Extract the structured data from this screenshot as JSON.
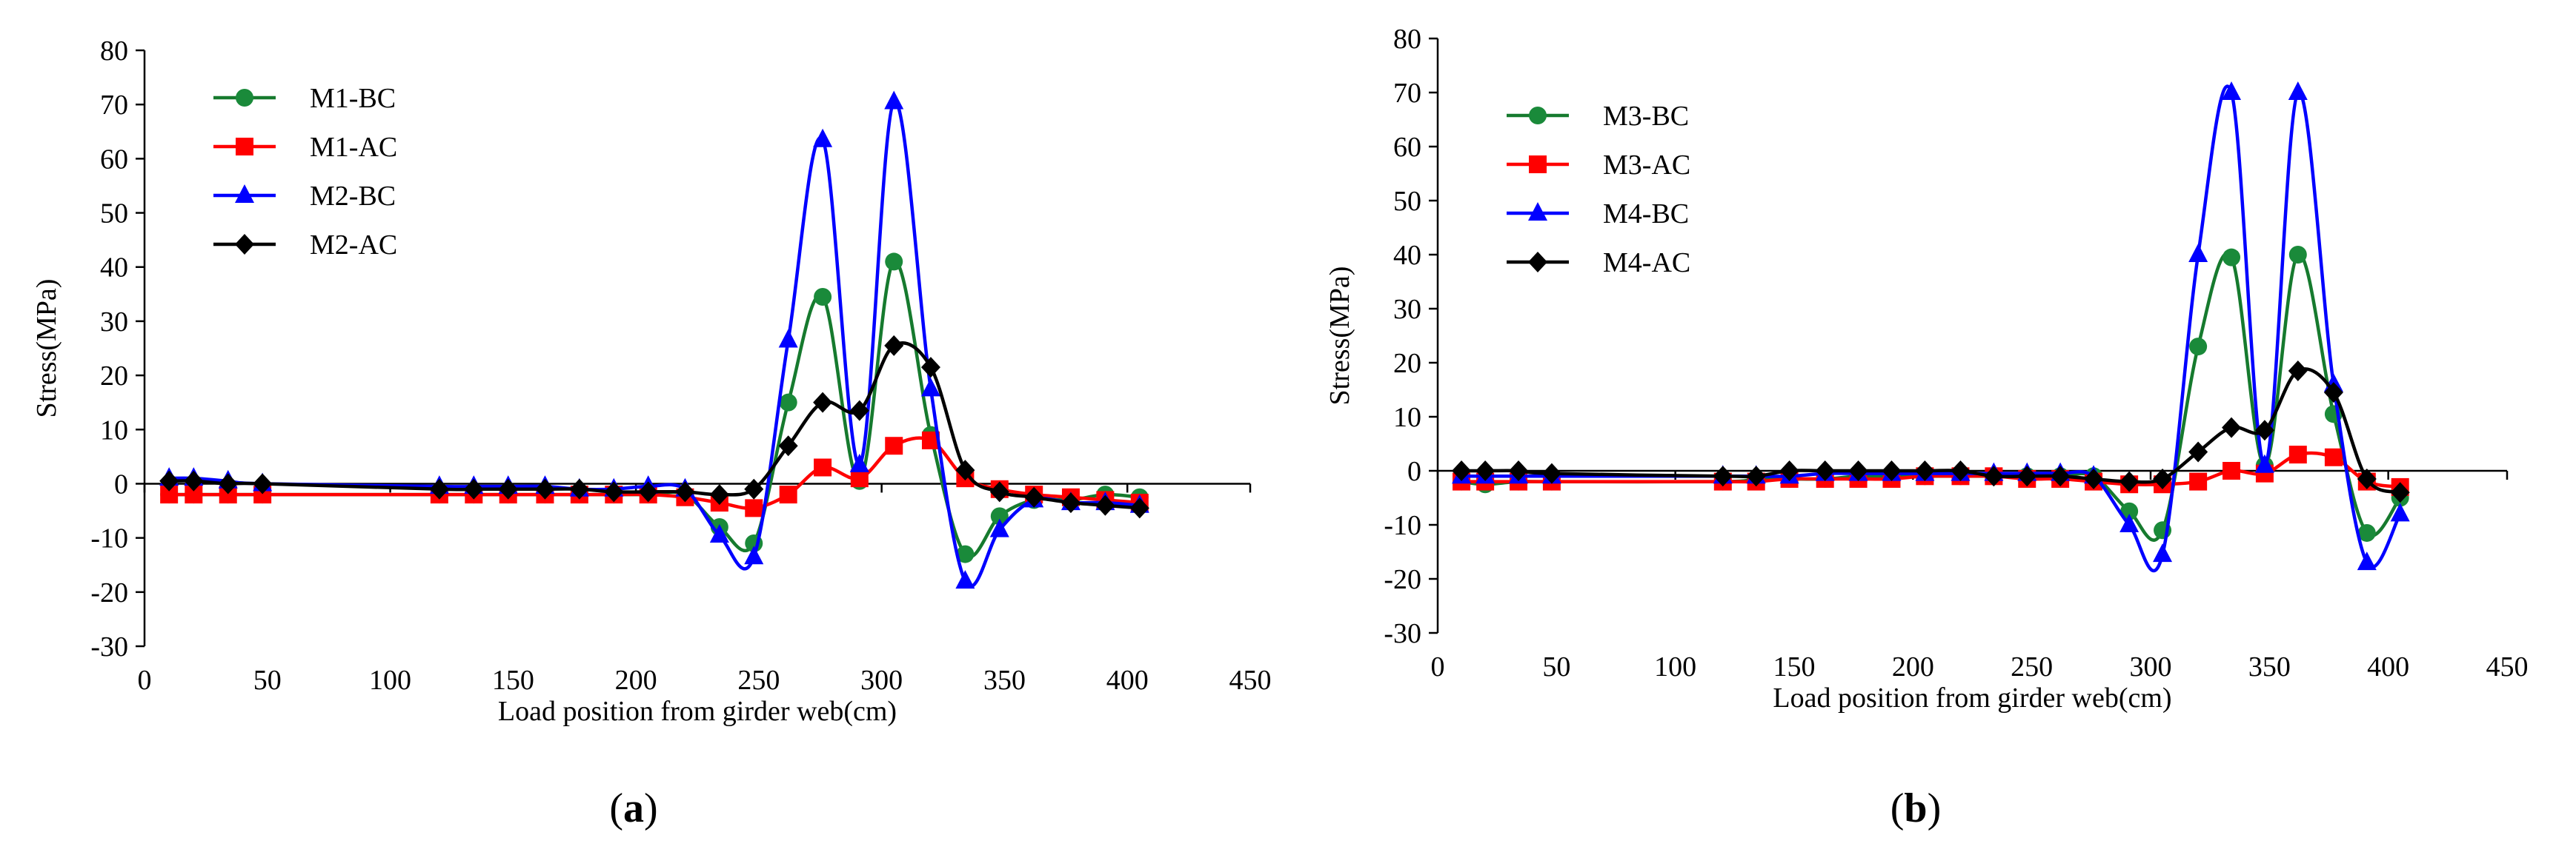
{
  "chart_data": [
    {
      "type": "line",
      "panel": "a",
      "panel_label": "a",
      "title": "",
      "xlabel": "Load position from girder web(cm)",
      "ylabel": "Stress(MPa)",
      "xlim": [
        0,
        450
      ],
      "ylim": [
        -30,
        80
      ],
      "xticks": [
        0,
        50,
        100,
        150,
        200,
        250,
        300,
        350,
        400,
        450
      ],
      "yticks": [
        -30,
        -20,
        -10,
        0,
        10,
        20,
        30,
        40,
        50,
        60,
        70,
        80
      ],
      "grid": false,
      "legend_position": "top-left",
      "series": [
        {
          "name": "M1-BC",
          "color": "#1a8a3a",
          "line_color": "#167a2e",
          "marker": "circle",
          "x": [
            10,
            20,
            34,
            48,
            120,
            134,
            148,
            163,
            177,
            191,
            205,
            220,
            234,
            248,
            262,
            276,
            291,
            305,
            320,
            334,
            348,
            362,
            377,
            391,
            405
          ],
          "y": [
            -2,
            -2,
            -2,
            -2,
            -2,
            -2,
            -2,
            -2,
            -2,
            -2,
            -2,
            -2,
            -8,
            -11,
            15,
            34.5,
            0.5,
            41,
            9,
            -13,
            -6,
            -3,
            -3,
            -2,
            -2.5
          ]
        },
        {
          "name": "M1-AC",
          "color": "#ff0000",
          "line_color": "#ff0000",
          "marker": "square",
          "x": [
            10,
            20,
            34,
            48,
            120,
            134,
            148,
            163,
            177,
            191,
            205,
            220,
            234,
            248,
            262,
            276,
            291,
            305,
            320,
            334,
            348,
            362,
            377,
            391,
            405
          ],
          "y": [
            -2,
            -2,
            -2,
            -2,
            -2,
            -2,
            -2,
            -2,
            -2,
            -2,
            -2,
            -2.5,
            -3.5,
            -4.5,
            -2,
            3,
            1,
            7,
            8,
            1,
            -1,
            -2,
            -2.5,
            -3,
            -3.5
          ]
        },
        {
          "name": "M2-BC",
          "color": "#0000ff",
          "line_color": "#0000ff",
          "marker": "triangle",
          "x": [
            10,
            20,
            34,
            48,
            120,
            134,
            148,
            163,
            177,
            191,
            205,
            220,
            234,
            248,
            262,
            276,
            291,
            305,
            320,
            334,
            348,
            362,
            377,
            391,
            405
          ],
          "y": [
            1,
            1,
            0.5,
            0,
            -0.5,
            -0.5,
            -0.5,
            -0.5,
            -1,
            -1,
            -0.5,
            -1,
            -9.5,
            -13.5,
            26.5,
            63.5,
            3.5,
            70.5,
            17.5,
            -18,
            -8.5,
            -3,
            -3.5,
            -3.5,
            -4
          ]
        },
        {
          "name": "M2-AC",
          "color": "#000000",
          "line_color": "#000000",
          "marker": "diamond",
          "x": [
            10,
            20,
            34,
            48,
            120,
            134,
            148,
            163,
            177,
            191,
            205,
            220,
            234,
            248,
            262,
            276,
            291,
            305,
            320,
            334,
            348,
            362,
            377,
            391,
            405
          ],
          "y": [
            0.5,
            0.5,
            0,
            0,
            -1,
            -1,
            -1,
            -1,
            -1,
            -1.5,
            -1.5,
            -1.5,
            -2,
            -1,
            7,
            15,
            13.5,
            25.5,
            21.5,
            2.5,
            -1.5,
            -2.5,
            -3.5,
            -4,
            -4.5
          ]
        }
      ]
    },
    {
      "type": "line",
      "panel": "b",
      "panel_label": "b",
      "title": "",
      "xlabel": "Load position from girder web(cm)",
      "ylabel": "Stress(MPa)",
      "xlim": [
        0,
        450
      ],
      "ylim": [
        -30,
        80
      ],
      "xticks": [
        0,
        50,
        100,
        150,
        200,
        250,
        300,
        350,
        400,
        450
      ],
      "yticks": [
        -30,
        -20,
        -10,
        0,
        10,
        20,
        30,
        40,
        50,
        60,
        70,
        80
      ],
      "grid": false,
      "legend_position": "top-left",
      "series": [
        {
          "name": "M3-BC",
          "color": "#1a8a3a",
          "line_color": "#167a2e",
          "marker": "circle",
          "x": [
            10,
            20,
            34,
            48,
            120,
            134,
            148,
            163,
            177,
            191,
            205,
            220,
            234,
            248,
            262,
            276,
            291,
            305,
            320,
            334,
            348,
            362,
            377,
            391,
            405
          ],
          "y": [
            -2,
            -2.5,
            -2,
            -2,
            -2,
            -1.5,
            -1.5,
            -1.5,
            -1,
            -1,
            -1,
            -1,
            -1,
            -1,
            -1,
            -1,
            -7.5,
            -11,
            23,
            39.5,
            1,
            40,
            10.5,
            -11.5,
            -5
          ]
        },
        {
          "name": "M3-AC",
          "color": "#ff0000",
          "line_color": "#ff0000",
          "marker": "square",
          "x": [
            10,
            20,
            34,
            48,
            120,
            134,
            148,
            163,
            177,
            191,
            205,
            220,
            234,
            248,
            262,
            276,
            291,
            305,
            320,
            334,
            348,
            362,
            377,
            391,
            405
          ],
          "y": [
            -2,
            -2,
            -2,
            -2,
            -2,
            -2,
            -1.5,
            -1.5,
            -1.5,
            -1.5,
            -1,
            -1,
            -1,
            -1.5,
            -1.5,
            -2,
            -2.5,
            -2.5,
            -2,
            0,
            -0.5,
            3,
            2.5,
            -2,
            -3
          ]
        },
        {
          "name": "M4-BC",
          "color": "#0000ff",
          "line_color": "#0000ff",
          "marker": "triangle",
          "x": [
            10,
            20,
            34,
            48,
            120,
            134,
            148,
            163,
            177,
            191,
            205,
            220,
            234,
            248,
            262,
            276,
            291,
            305,
            320,
            334,
            348,
            362,
            377,
            391,
            405
          ],
          "y": [
            -1,
            -1,
            -1,
            -1,
            -1,
            -1,
            -1,
            -0.5,
            -0.5,
            -0.5,
            -0.5,
            -0.5,
            -0.5,
            -0.5,
            -0.5,
            -1,
            -10,
            -15.5,
            40,
            70,
            1,
            70,
            16,
            -17,
            -8
          ]
        },
        {
          "name": "M4-AC",
          "color": "#000000",
          "line_color": "#000000",
          "marker": "diamond",
          "x": [
            10,
            20,
            34,
            48,
            120,
            134,
            148,
            163,
            177,
            191,
            205,
            220,
            234,
            248,
            262,
            276,
            291,
            305,
            320,
            334,
            348,
            362,
            377,
            391,
            405
          ],
          "y": [
            0,
            0,
            0,
            -0.5,
            -1,
            -1,
            0,
            0,
            0,
            0,
            0,
            0,
            -1,
            -1,
            -1,
            -1.5,
            -2,
            -1.5,
            3.5,
            8,
            7.5,
            18.5,
            14.5,
            -1.5,
            -4
          ]
        }
      ]
    }
  ]
}
